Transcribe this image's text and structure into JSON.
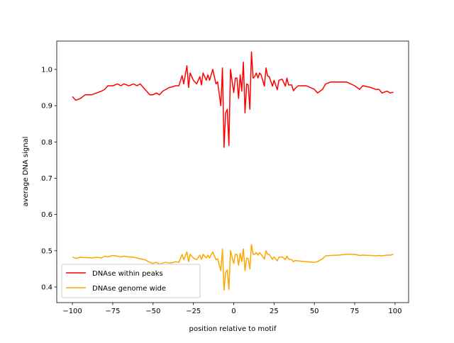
{
  "chart_data": {
    "type": "line",
    "title": "",
    "xlabel": "position relative to motif",
    "ylabel": "average DNA signal",
    "xlim": [
      -109.7,
      108.4
    ],
    "ylim": [
      0.357,
      1.078
    ],
    "xticks": [
      -100,
      -75,
      -50,
      -25,
      0,
      25,
      50,
      75,
      100
    ],
    "xtick_labels": [
      "−100",
      "−75",
      "−50",
      "−25",
      "0",
      "25",
      "50",
      "75",
      "100"
    ],
    "yticks": [
      0.4,
      0.5,
      0.6,
      0.7,
      0.8,
      0.9,
      1.0
    ],
    "ytick_labels": [
      "0.4",
      "0.5",
      "0.6",
      "0.7",
      "0.8",
      "0.9",
      "1.0"
    ],
    "grid": false,
    "legend_position": "lower-left",
    "x": [
      -100,
      -98,
      -95,
      -92,
      -88,
      -85,
      -82,
      -80,
      -78,
      -75,
      -72,
      -70,
      -68,
      -65,
      -62,
      -60,
      -58,
      -55,
      -52,
      -50,
      -48,
      -46,
      -44,
      -42,
      -40,
      -38,
      -36,
      -34,
      -32,
      -31,
      -29,
      -28,
      -27,
      -25,
      -23,
      -21,
      -20,
      -19,
      -17,
      -16,
      -15,
      -13,
      -11,
      -10,
      -8,
      -7,
      -6,
      -5,
      -4,
      -3,
      -2,
      0,
      1,
      2,
      3,
      4,
      5,
      6,
      7,
      8,
      9,
      10,
      11,
      12,
      13,
      14,
      15,
      16,
      17,
      19,
      20,
      21,
      22,
      24,
      25,
      27,
      28,
      30,
      32,
      33,
      34,
      36,
      37,
      38,
      40,
      45,
      50,
      52,
      55,
      57,
      60,
      65,
      70,
      75,
      78,
      80,
      85,
      88,
      90,
      92,
      95,
      97,
      99
    ],
    "series": [
      {
        "name": "DNAse within peaks",
        "color": "#ff0000",
        "values": [
          0.925,
          0.915,
          0.92,
          0.93,
          0.93,
          0.935,
          0.94,
          0.945,
          0.955,
          0.955,
          0.96,
          0.955,
          0.96,
          0.955,
          0.96,
          0.955,
          0.96,
          0.945,
          0.93,
          0.93,
          0.935,
          0.93,
          0.94,
          0.945,
          0.95,
          0.952,
          0.955,
          0.955,
          0.983,
          0.96,
          1.01,
          0.95,
          0.99,
          0.97,
          0.96,
          0.98,
          0.957,
          0.99,
          0.97,
          0.985,
          0.97,
          1.0,
          0.96,
          0.966,
          0.9,
          1.004,
          0.785,
          0.88,
          0.89,
          0.79,
          1.0,
          0.936,
          0.976,
          0.976,
          0.92,
          0.985,
          0.94,
          1.02,
          0.88,
          0.96,
          0.957,
          0.89,
          1.048,
          0.976,
          0.98,
          0.99,
          0.976,
          0.99,
          0.985,
          0.954,
          1.004,
          0.982,
          0.98,
          0.954,
          0.97,
          0.944,
          0.97,
          0.973,
          0.954,
          0.976,
          0.957,
          0.957,
          0.941,
          0.947,
          0.955,
          0.955,
          0.945,
          0.935,
          0.945,
          0.96,
          0.965,
          0.965,
          0.965,
          0.955,
          0.945,
          0.955,
          0.95,
          0.945,
          0.945,
          0.935,
          0.94,
          0.935,
          0.937
        ]
      },
      {
        "name": "DNAse genome wide",
        "color": "#ffa500",
        "values": [
          0.483,
          0.479,
          0.482,
          0.481,
          0.48,
          0.482,
          0.48,
          0.485,
          0.483,
          0.487,
          0.485,
          0.483,
          0.485,
          0.483,
          0.482,
          0.48,
          0.478,
          0.475,
          0.468,
          0.465,
          0.468,
          0.463,
          0.466,
          0.468,
          0.466,
          0.467,
          0.47,
          0.468,
          0.49,
          0.475,
          0.497,
          0.47,
          0.49,
          0.48,
          0.475,
          0.488,
          0.476,
          0.49,
          0.48,
          0.488,
          0.48,
          0.497,
          0.475,
          0.478,
          0.445,
          0.505,
          0.391,
          0.44,
          0.447,
          0.394,
          0.5,
          0.465,
          0.49,
          0.49,
          0.46,
          0.493,
          0.47,
          0.505,
          0.445,
          0.48,
          0.478,
          0.45,
          0.517,
          0.49,
          0.49,
          0.495,
          0.488,
          0.495,
          0.49,
          0.477,
          0.5,
          0.49,
          0.49,
          0.476,
          0.483,
          0.472,
          0.482,
          0.483,
          0.476,
          0.485,
          0.477,
          0.475,
          0.47,
          0.473,
          0.472,
          0.47,
          0.468,
          0.47,
          0.478,
          0.486,
          0.487,
          0.488,
          0.49,
          0.49,
          0.487,
          0.488,
          0.487,
          0.486,
          0.487,
          0.486,
          0.488,
          0.488,
          0.49
        ]
      }
    ]
  }
}
